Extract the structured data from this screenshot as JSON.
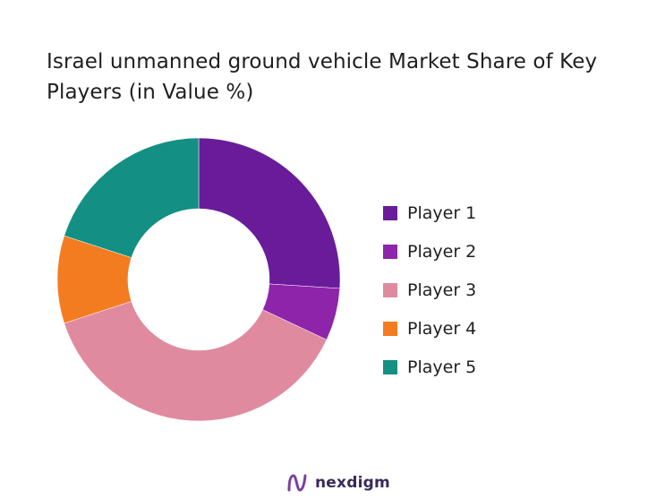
{
  "chart_data": {
    "type": "pie",
    "donut": true,
    "title": "Israel unmanned ground vehicle Market Share of Key Players (in Value %)",
    "categories": [
      "Player 1",
      "Player 2",
      "Player 3",
      "Player 4",
      "Player 5"
    ],
    "values": [
      26,
      6,
      38,
      10,
      20
    ],
    "colors": [
      "#6a1b9a",
      "#8e24aa",
      "#e08aa0",
      "#f47c20",
      "#138f83"
    ],
    "legend_position": "right"
  },
  "brand": {
    "name": "nexdigm",
    "mark_color": "#7b3fa0"
  }
}
